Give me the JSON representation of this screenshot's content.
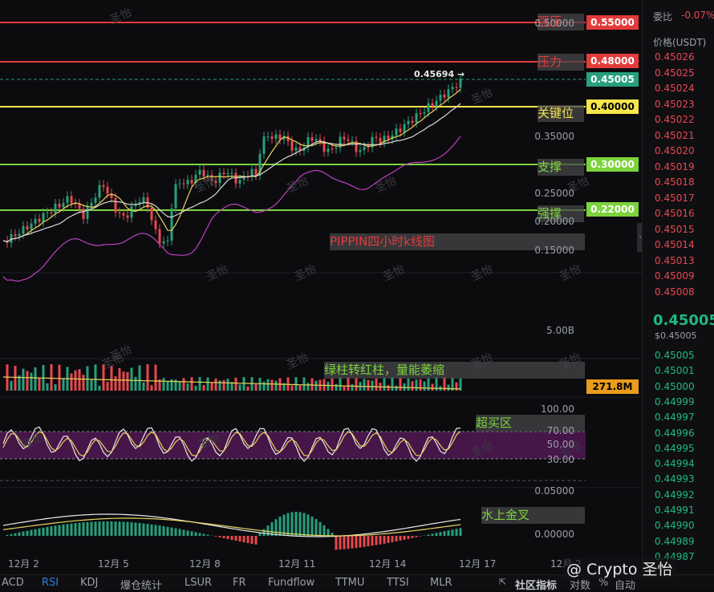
{
  "colors": {
    "up": "#26a17b",
    "down": "#e8484e",
    "resistance": "#e33b3b",
    "key": "#f5e64a",
    "support": "#7cd43c",
    "ma_white": "#d8d8d8",
    "ma_yellow": "#e8d45a",
    "ma_purple": "#c040c0"
  },
  "levels": [
    {
      "price": "0.55000",
      "label": "强压",
      "kind": "resistance"
    },
    {
      "price": "0.48000",
      "label": "压力",
      "kind": "resistance"
    },
    {
      "price": "0.40000",
      "label": "关键位",
      "kind": "key"
    },
    {
      "price": "0.30000",
      "label": "支撑",
      "kind": "support"
    },
    {
      "price": "0.22000",
      "label": "强撑",
      "kind": "support"
    }
  ],
  "current_price_tag": "0.45005",
  "high_marker": "0.45694 →",
  "annotations": {
    "chart_title": "PIPPIN四小时k线图",
    "volume_note": "绿柱转红柱，量能萎缩",
    "rsi_note": "超买区",
    "macd_note": "水上金叉"
  },
  "price_axis": [
    "0.50000",
    "0.35000",
    "0.25000",
    "0.20000",
    "0.15000"
  ],
  "volume_axis": {
    "max": "5.00B",
    "current": "271.8M"
  },
  "rsi_axis": [
    "100.00",
    "70.00",
    "50.00",
    "30.00"
  ],
  "macd_axis": [
    "0.05000",
    "0.00000"
  ],
  "dates": [
    "12月 2",
    "12月 5",
    "12月 8",
    "12月 11",
    "12月 14",
    "12月 17",
    "12月 2"
  ],
  "watermark": "圣怡",
  "right_panel": {
    "title": "委比",
    "change": "-0.07%",
    "header": "价格(USDT)",
    "asks": [
      "0.45026",
      "0.45025",
      "0.45024",
      "0.45023",
      "0.45022",
      "0.45021",
      "0.45020",
      "0.45019",
      "0.45018",
      "0.45017",
      "0.45016",
      "0.45015",
      "0.45014",
      "0.45013",
      "0.45009",
      "0.45008"
    ],
    "last_price": "0.45005",
    "last_price_usd": "$0.45005",
    "bids": [
      "0.45005",
      "0.45001",
      "0.45000",
      "0.44999",
      "0.44997",
      "0.44996",
      "0.44995",
      "0.44994",
      "0.44993",
      "0.44992",
      "0.44991",
      "0.44990",
      "0.44989",
      "0.44987"
    ]
  },
  "bottom_tabs": [
    "ACD",
    "RSI",
    "KDJ",
    "爆仓统计",
    "LSUR",
    "FR",
    "Fundflow",
    "TTMU",
    "TTSI",
    "MLR"
  ],
  "bottom_right": {
    "community": "社区指标",
    "pair": "对数",
    "percent": "%",
    "auto": "自动"
  },
  "branding": "@ Crypto 圣怡"
}
